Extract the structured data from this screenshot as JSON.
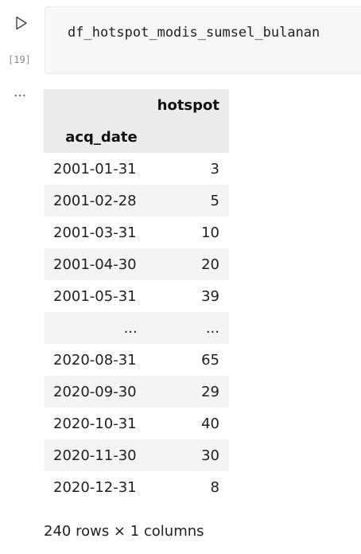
{
  "cell": {
    "execution_count": "[19]",
    "code": "df_hotspot_modis_sumsel_bulanan"
  },
  "output": {
    "menu_label": "…",
    "table": {
      "column_header": "hotspot",
      "index_name": "acq_date",
      "rows": [
        {
          "index": "2001-01-31",
          "value": "3"
        },
        {
          "index": "2001-02-28",
          "value": "5"
        },
        {
          "index": "2001-03-31",
          "value": "10"
        },
        {
          "index": "2001-04-30",
          "value": "20"
        },
        {
          "index": "2001-05-31",
          "value": "39"
        },
        {
          "index": "...",
          "value": "..."
        },
        {
          "index": "2020-08-31",
          "value": "65"
        },
        {
          "index": "2020-09-30",
          "value": "29"
        },
        {
          "index": "2020-10-31",
          "value": "40"
        },
        {
          "index": "2020-11-30",
          "value": "30"
        },
        {
          "index": "2020-12-31",
          "value": "8"
        }
      ]
    },
    "shape": "240 rows × 1 columns"
  }
}
